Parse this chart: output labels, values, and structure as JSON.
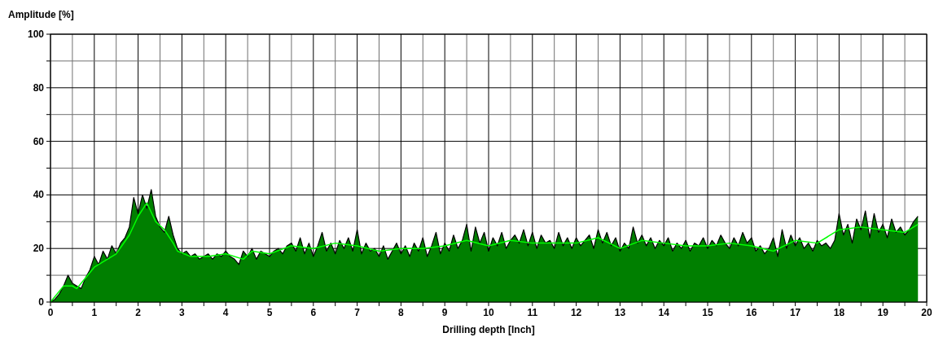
{
  "chart_data": {
    "type": "area",
    "ylabel": "Amplitude [%]",
    "xlabel": "Drilling depth [Inch]",
    "xlim": [
      0,
      20
    ],
    "ylim": [
      0,
      100
    ],
    "xticks": [
      0,
      {
        "value": 0.5,
        "label": null
      },
      1,
      {
        "value": 1.5,
        "label": null
      },
      2,
      {
        "value": 2.5,
        "label": null
      },
      3,
      {
        "value": 3.5,
        "label": null
      },
      4,
      {
        "value": 4.5,
        "label": null
      },
      5,
      {
        "value": 5.5,
        "label": null
      },
      6,
      {
        "value": 6.5,
        "label": null
      },
      7,
      {
        "value": 7.5,
        "label": null
      },
      8,
      {
        "value": 8.5,
        "label": null
      },
      9,
      {
        "value": 9.5,
        "label": null
      },
      10,
      {
        "value": 10.5,
        "label": null
      },
      11,
      {
        "value": 11.5,
        "label": null
      },
      12,
      {
        "value": 12.5,
        "label": null
      },
      13,
      {
        "value": 13.5,
        "label": null
      },
      14,
      {
        "value": 14.5,
        "label": null
      },
      15,
      {
        "value": 15.5,
        "label": null
      },
      16,
      {
        "value": 16.5,
        "label": null
      },
      17,
      {
        "value": 17.5,
        "label": null
      },
      18,
      {
        "value": 18.5,
        "label": null
      },
      19,
      {
        "value": 19.5,
        "label": null
      },
      20
    ],
    "yticks": [
      0,
      {
        "value": 10,
        "label": null
      },
      20,
      {
        "value": 30,
        "label": null
      },
      40,
      {
        "value": 50,
        "label": null
      },
      60,
      {
        "value": 70,
        "label": null
      },
      80,
      {
        "value": 90,
        "label": null
      },
      100
    ],
    "grid": true,
    "series": [
      {
        "color": "#007f00",
        "x": [
          0,
          0.1,
          0.2,
          0.3,
          0.4,
          0.5,
          0.6,
          0.7,
          0.8,
          0.9,
          1,
          1.1,
          1.2,
          1.3,
          1.4,
          1.5,
          1.6,
          1.7,
          1.8,
          1.9,
          2,
          2.1,
          2.2,
          2.3,
          2.4,
          2.5,
          2.6,
          2.7,
          2.8,
          2.9,
          3,
          3.1,
          3.2,
          3.3,
          3.4,
          3.5,
          3.6,
          3.7,
          3.8,
          3.9,
          4,
          4.1,
          4.2,
          4.3,
          4.4,
          4.5,
          4.6,
          4.7,
          4.8,
          4.9,
          5,
          5.1,
          5.2,
          5.3,
          5.4,
          5.5,
          5.6,
          5.7,
          5.8,
          5.9,
          6,
          6.1,
          6.2,
          6.3,
          6.4,
          6.5,
          6.6,
          6.7,
          6.8,
          6.9,
          7,
          7.1,
          7.2,
          7.3,
          7.4,
          7.5,
          7.6,
          7.7,
          7.8,
          7.9,
          8,
          8.1,
          8.2,
          8.3,
          8.4,
          8.5,
          8.6,
          8.7,
          8.8,
          8.9,
          9,
          9.1,
          9.2,
          9.3,
          9.4,
          9.5,
          9.6,
          9.7,
          9.8,
          9.9,
          10,
          10.1,
          10.2,
          10.3,
          10.4,
          10.5,
          10.6,
          10.7,
          10.8,
          10.9,
          11,
          11.1,
          11.2,
          11.3,
          11.4,
          11.5,
          11.6,
          11.7,
          11.8,
          11.9,
          12,
          12.1,
          12.2,
          12.3,
          12.4,
          12.5,
          12.6,
          12.7,
          12.8,
          12.9,
          13,
          13.1,
          13.2,
          13.3,
          13.4,
          13.5,
          13.6,
          13.7,
          13.8,
          13.9,
          14,
          14.1,
          14.2,
          14.3,
          14.4,
          14.5,
          14.6,
          14.7,
          14.8,
          14.9,
          15,
          15.1,
          15.2,
          15.3,
          15.4,
          15.5,
          15.6,
          15.7,
          15.8,
          15.9,
          16,
          16.1,
          16.2,
          16.3,
          16.4,
          16.5,
          16.6,
          16.7,
          16.8,
          16.9,
          17,
          17.1,
          17.2,
          17.3,
          17.4,
          17.5,
          17.6,
          17.7,
          17.8,
          17.9,
          18,
          18.1,
          18.2,
          18.3,
          18.4,
          18.5,
          18.6,
          18.7,
          18.8,
          18.9,
          19,
          19.1,
          19.2,
          19.3,
          19.4,
          19.5,
          19.6,
          19.7,
          19.8
        ],
        "values": [
          0,
          1,
          3,
          6,
          10,
          7,
          6,
          5,
          9,
          12,
          17,
          14,
          19,
          16,
          21,
          18,
          22,
          24,
          28,
          39,
          33,
          40,
          35,
          42,
          32,
          28,
          26,
          32,
          25,
          20,
          18,
          19,
          17,
          18,
          16,
          17,
          18,
          16,
          18,
          17,
          19,
          17,
          16,
          14,
          19,
          17,
          20,
          16,
          19,
          18,
          17,
          19,
          20,
          18,
          21,
          22,
          19,
          24,
          18,
          22,
          17,
          21,
          26,
          19,
          22,
          18,
          23,
          20,
          24,
          19,
          27,
          18,
          22,
          19,
          20,
          17,
          21,
          16,
          19,
          22,
          18,
          21,
          17,
          22,
          19,
          24,
          17,
          21,
          26,
          18,
          22,
          19,
          25,
          20,
          23,
          29,
          19,
          28,
          22,
          26,
          19,
          24,
          21,
          26,
          20,
          23,
          25,
          22,
          27,
          21,
          26,
          20,
          25,
          22,
          23,
          20,
          26,
          21,
          24,
          20,
          24,
          21,
          23,
          25,
          20,
          27,
          22,
          26,
          21,
          24,
          19,
          22,
          20,
          28,
          22,
          25,
          21,
          24,
          20,
          23,
          21,
          24,
          19,
          22,
          20,
          23,
          19,
          22,
          21,
          24,
          20,
          23,
          21,
          25,
          22,
          20,
          24,
          21,
          26,
          22,
          24,
          19,
          21,
          18,
          20,
          24,
          17,
          27,
          20,
          25,
          21,
          24,
          20,
          22,
          19,
          23,
          21,
          22,
          20,
          23,
          33,
          25,
          29,
          22,
          31,
          27,
          34,
          24,
          33,
          26,
          29,
          24,
          31,
          26,
          28,
          25,
          27,
          30,
          32
        ]
      },
      {
        "type": "line",
        "color": "#00ff00",
        "x": [
          0,
          0.3,
          0.5,
          0.6,
          1,
          1.5,
          1.8,
          2,
          2.2,
          2.4,
          2.6,
          2.8,
          2.9,
          3.2,
          3.6,
          4,
          4.4,
          4.6,
          5,
          5.5,
          6,
          6.5,
          7,
          7.5,
          8,
          8.5,
          9,
          9.5,
          10,
          10.5,
          11,
          11.5,
          12,
          12.5,
          13,
          13.5,
          14,
          14.5,
          15,
          15.5,
          16,
          16.5,
          17,
          17.5,
          18,
          18.5,
          19,
          19.5,
          19.8
        ],
        "values": [
          0,
          6,
          6,
          5,
          13,
          18,
          25,
          32,
          37,
          30,
          27,
          22,
          19,
          17,
          17,
          18,
          16,
          19,
          18,
          21,
          20,
          22,
          21,
          19,
          20,
          20,
          21,
          23,
          21,
          23,
          22,
          22,
          22,
          24,
          20,
          23,
          22,
          21,
          21,
          22,
          21,
          19,
          23,
          22,
          27,
          28,
          27,
          26,
          29
        ]
      }
    ]
  }
}
